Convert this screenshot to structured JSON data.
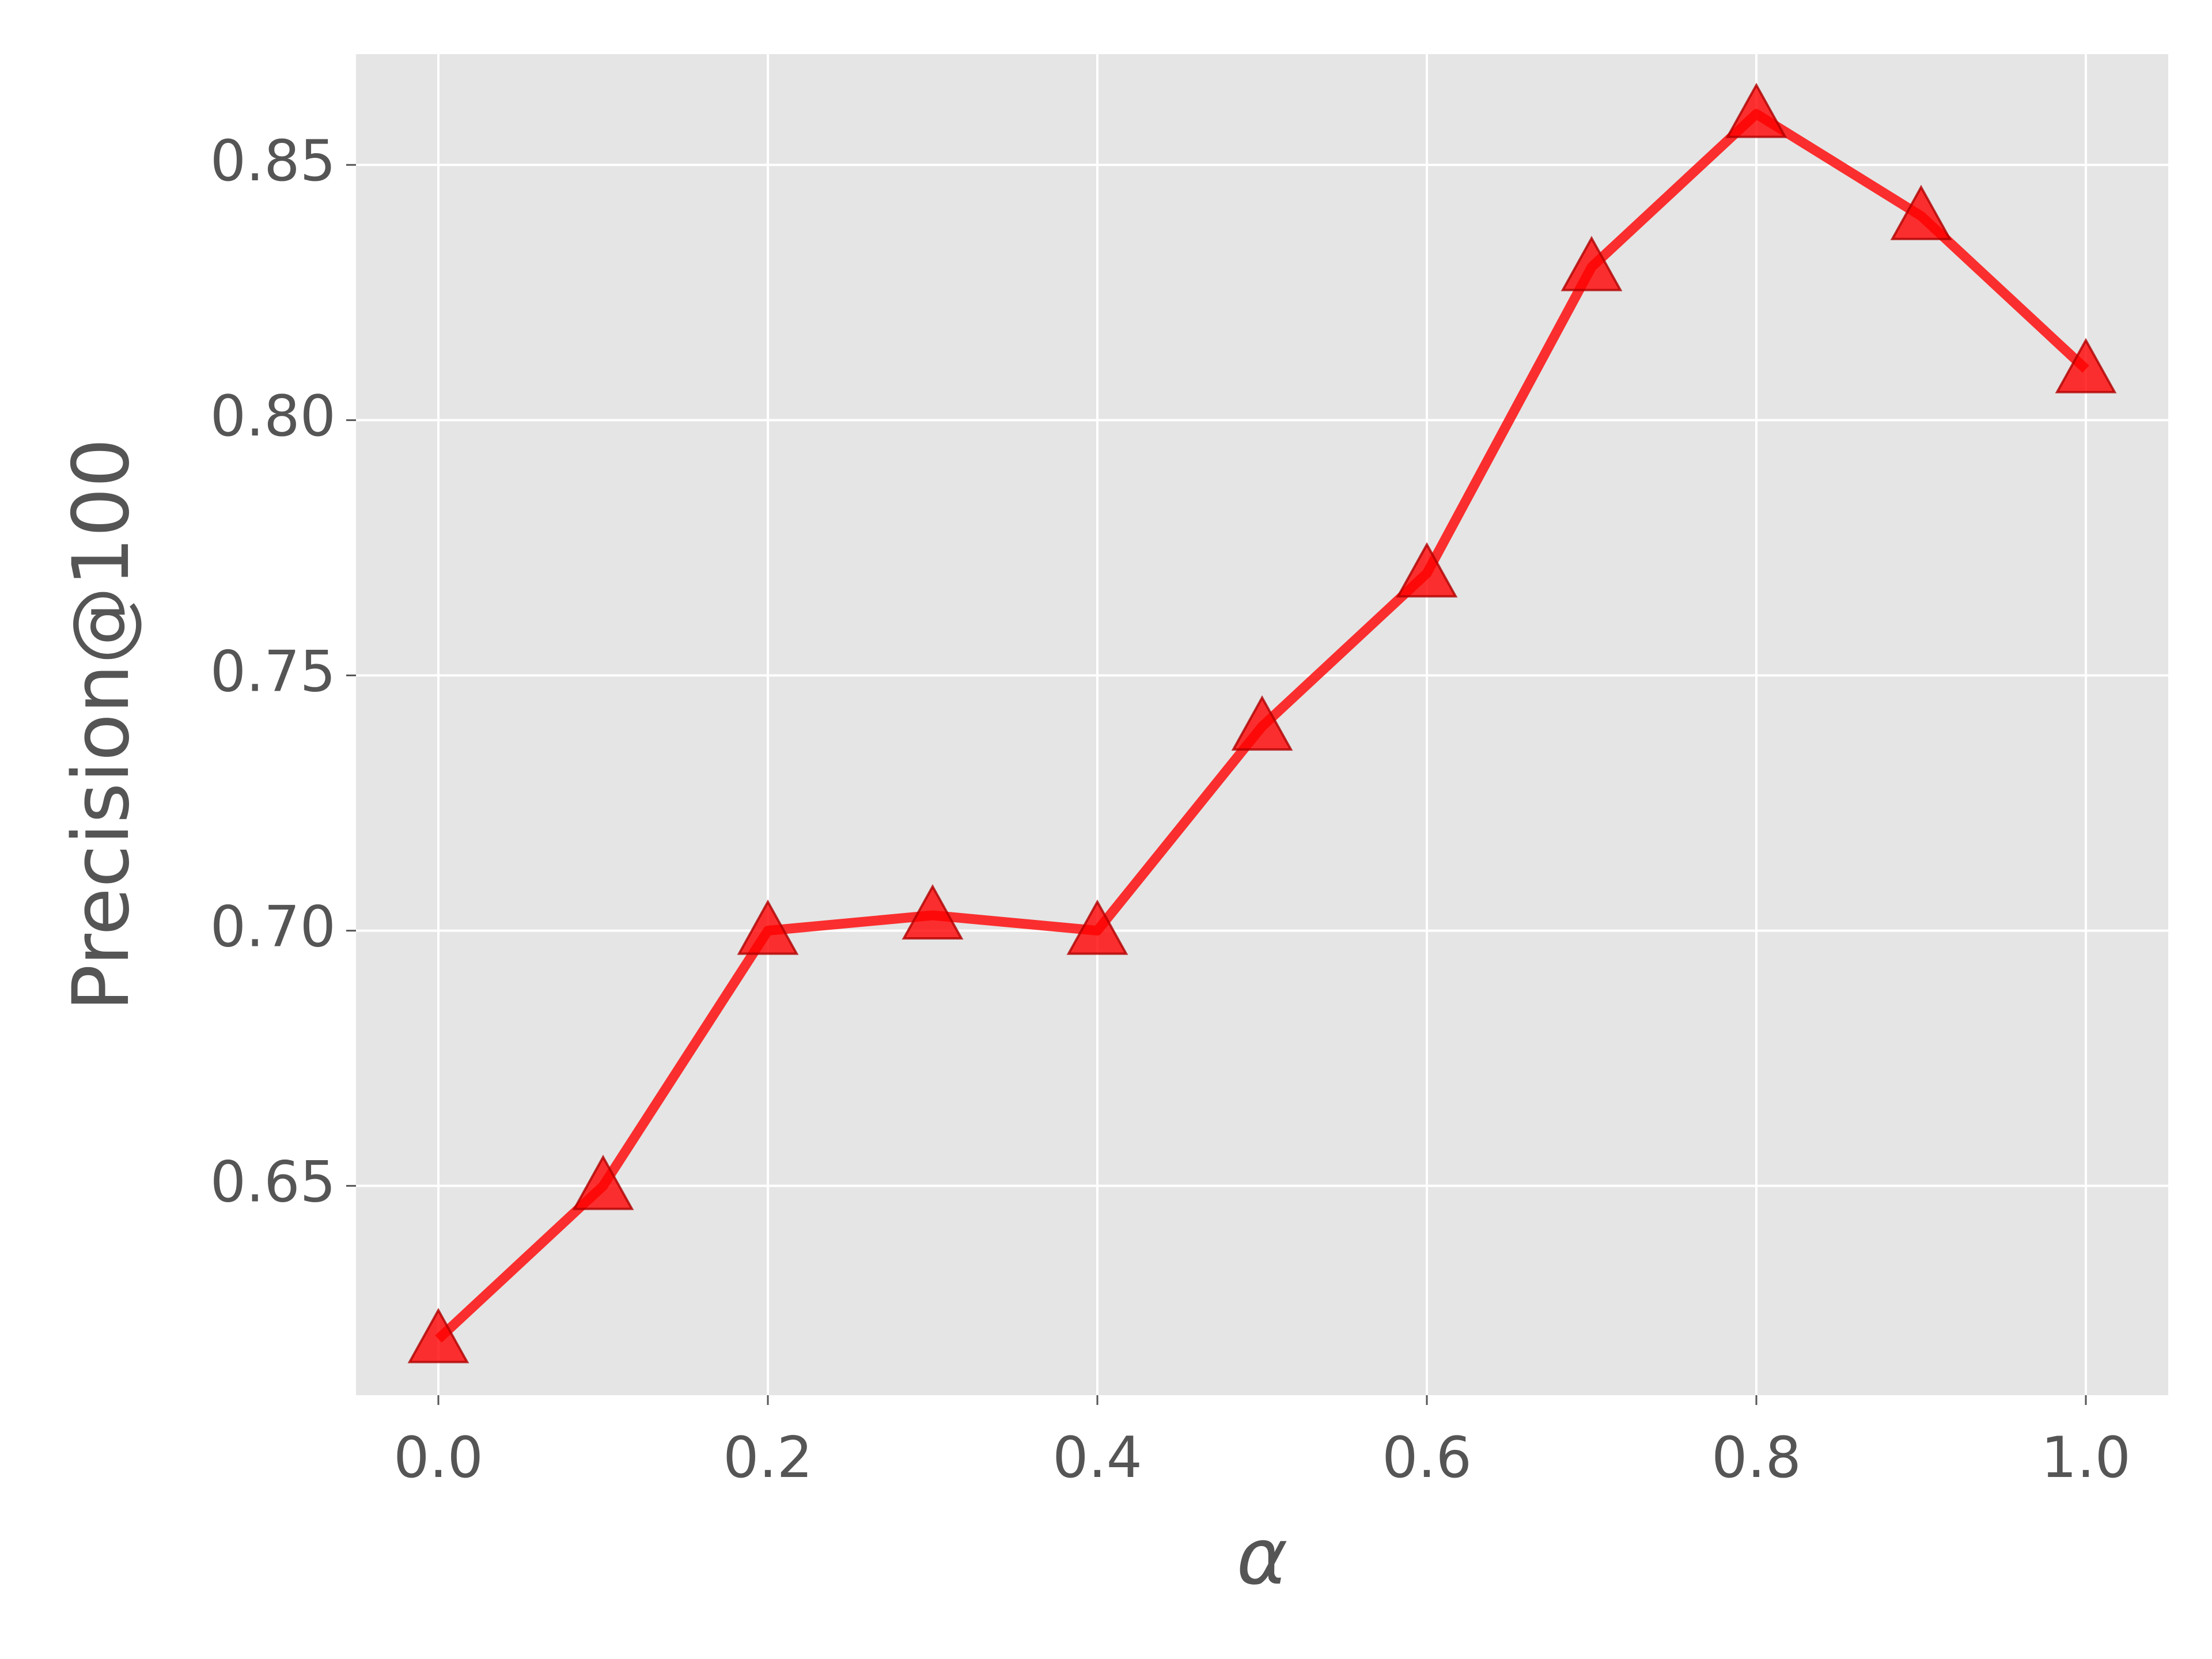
{
  "chart_data": {
    "type": "line",
    "x_label": "α",
    "y_label": "Precision@100",
    "x": [
      0,
      0.1,
      0.2,
      0.3,
      0.4,
      0.5,
      0.6,
      0.7,
      0.8,
      0.9,
      1.0
    ],
    "series": [
      {
        "color": "#ff0000",
        "values": [
          0.62,
          0.65,
          0.7,
          0.703,
          0.7,
          0.74,
          0.77,
          0.83,
          0.86,
          0.84,
          0.81
        ]
      }
    ],
    "xlim": [
      -0.05,
      1.05
    ],
    "xticks": [
      {
        "value": 0,
        "label": "0.0"
      },
      0.2,
      0.4,
      0.6,
      0.8,
      {
        "value": 1,
        "label": "1.0"
      }
    ],
    "ylim": [
      0.609,
      0.8717
    ],
    "yticks": [
      0.65,
      {
        "value": 0.7,
        "label": "0.70"
      },
      0.75,
      {
        "value": 0.8,
        "label": "0.80"
      },
      0.85
    ],
    "grid": true,
    "marker": "triangle"
  }
}
